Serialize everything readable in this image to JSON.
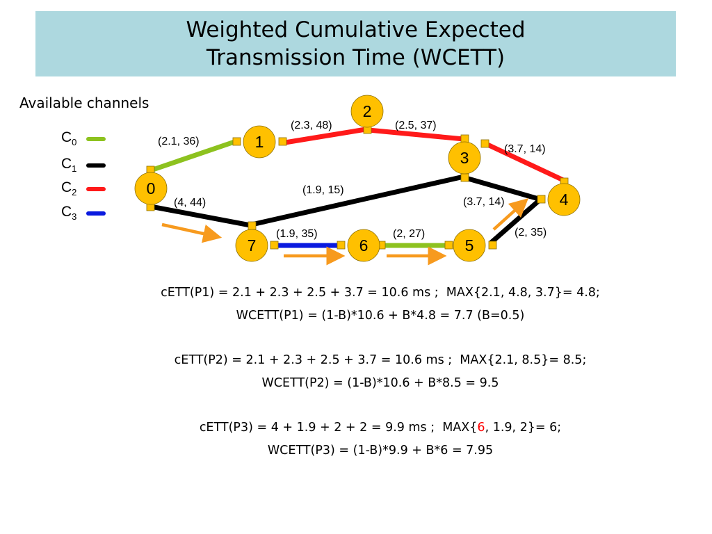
{
  "title": {
    "line1": "Weighted Cumulative Expected",
    "line2": "Transmission Time (WCETT)"
  },
  "channels_label": "Available channels",
  "channels": [
    {
      "symbol": "C",
      "sub": "0",
      "color": "#8dc21f"
    },
    {
      "symbol": "C",
      "sub": "1",
      "color": "#000000"
    },
    {
      "symbol": "C",
      "sub": "2",
      "color": "#ff1a1a"
    },
    {
      "symbol": "C",
      "sub": "3",
      "color": "#0a1adf"
    }
  ],
  "diagram": {
    "node_color": "#ffc000",
    "arrow_color": "#f79a1e",
    "nodes": [
      "0",
      "1",
      "2",
      "3",
      "4",
      "5",
      "6",
      "7"
    ],
    "edges": [
      {
        "from": "0",
        "to": "1",
        "channel": 0,
        "label": "(2.1, 36)"
      },
      {
        "from": "1",
        "to": "2",
        "channel": 2,
        "label": "(2.3, 48)"
      },
      {
        "from": "2",
        "to": "3",
        "channel": 2,
        "label": "(2.5, 37)"
      },
      {
        "from": "3",
        "to": "4",
        "channel": 2,
        "label": "(3.7, 14)"
      },
      {
        "from": "7",
        "to": "3",
        "channel": 1,
        "label": "(1.9, 15)"
      },
      {
        "from": "3",
        "to": "4",
        "channel": 1,
        "label": "(3.7, 14)"
      },
      {
        "from": "0",
        "to": "7",
        "channel": 1,
        "label": "(4, 44)"
      },
      {
        "from": "7",
        "to": "6",
        "channel": 3,
        "label": "(1.9, 35)"
      },
      {
        "from": "6",
        "to": "5",
        "channel": 0,
        "label": "(2, 27)"
      },
      {
        "from": "5",
        "to": "4",
        "channel": 1,
        "label": "(2, 35)"
      }
    ]
  },
  "formulas": {
    "p1_cett": "cETT(P1) = 2.1 + 2.3 + 2.5 + 3.7 = 10.6 ms ;  MAX{2.1, 4.8, 3.7}= 4.8;",
    "p1_wcett": "WCETT(P1) = (1-B)*10.6 + B*4.8 = 7.7 (B=0.5)",
    "p2_cett": "cETT(P2) = 2.1 + 2.3 + 2.5 + 3.7 = 10.6 ms ;  MAX{2.1, 8.5}= 8.5;",
    "p2_wcett": "WCETT(P2) = (1-B)*10.6 + B*8.5 = 9.5",
    "p3_cett_pre": "cETT(P3) = 4 + 1.9 + 2 + 2 = 9.9 ms ;  MAX{",
    "p3_cett_hl": "6",
    "p3_cett_post": ", 1.9, 2}= 6;",
    "p3_wcett": "WCETT(P3) = (1-B)*9.9 + B*6 = 7.95",
    "highlight_color": "#ff0000"
  }
}
